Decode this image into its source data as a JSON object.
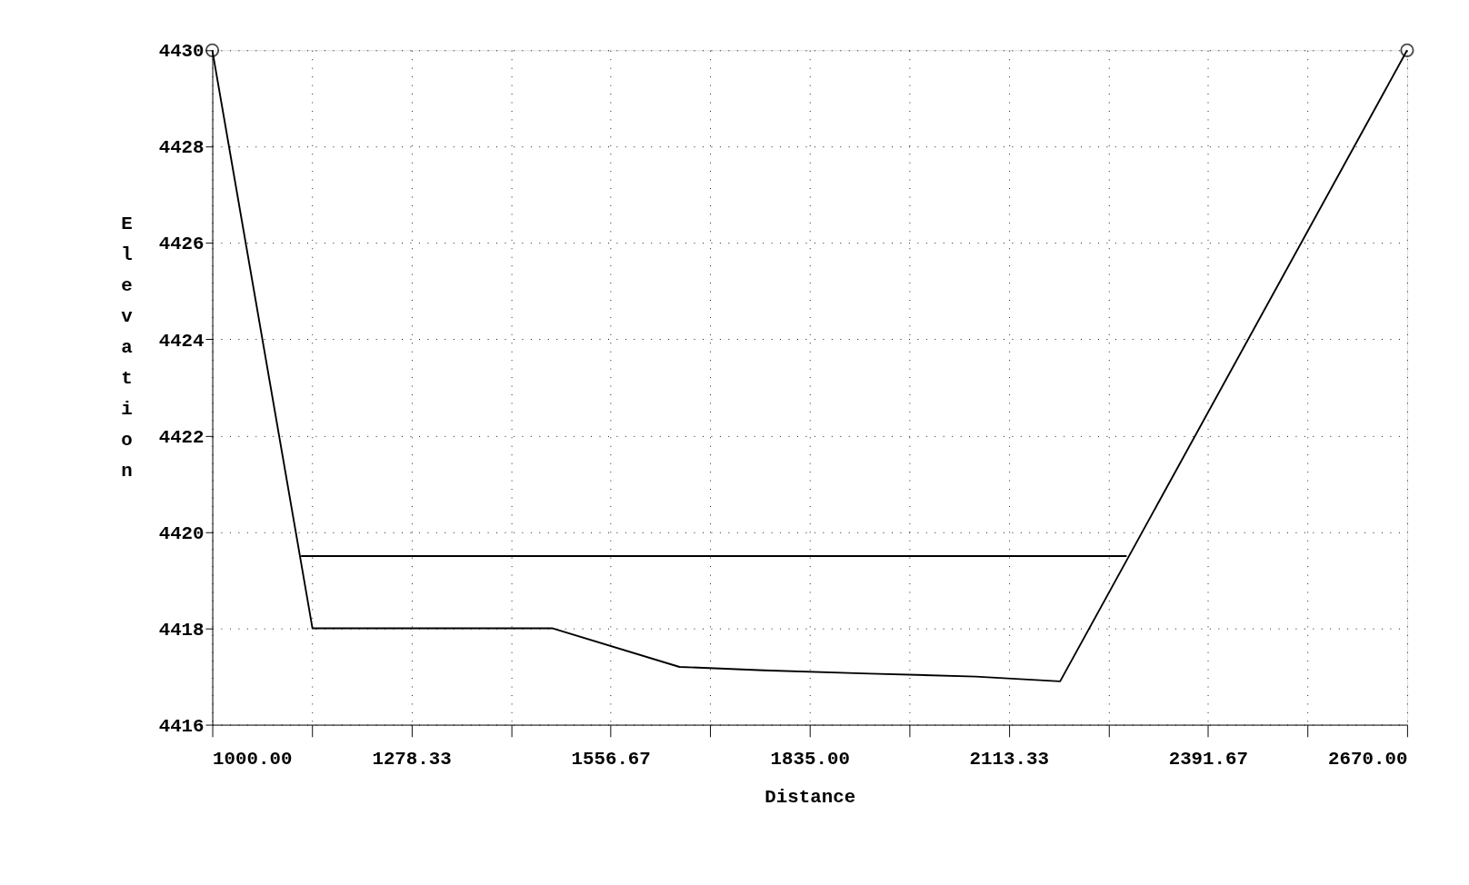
{
  "chart_data": {
    "type": "line",
    "xlabel": "Distance",
    "ylabel": "Elevation",
    "xlim": [
      1000,
      2670
    ],
    "ylim": [
      4416,
      4430
    ],
    "xticks": [
      {
        "value": 1000,
        "label": "1000.00"
      },
      {
        "value": 1139.17,
        "label": null
      },
      {
        "value": 1278.33,
        "label": "1278.33"
      },
      {
        "value": 1417.5,
        "label": null
      },
      {
        "value": 1556.67,
        "label": "1556.67"
      },
      {
        "value": 1695.83,
        "label": null
      },
      {
        "value": 1835,
        "label": "1835.00"
      },
      {
        "value": 1974.17,
        "label": null
      },
      {
        "value": 2113.33,
        "label": "2113.33"
      },
      {
        "value": 2252.5,
        "label": null
      },
      {
        "value": 2391.67,
        "label": "2391.67"
      },
      {
        "value": 2530.83,
        "label": null
      },
      {
        "value": 2670,
        "label": "2670.00"
      }
    ],
    "yticks": [
      4416,
      4418,
      4420,
      4422,
      4424,
      4426,
      4428,
      4430
    ],
    "grid": true,
    "line_style": "solid",
    "marker": "none",
    "series": [
      {
        "color": "#000000",
        "x": [
          1000,
          1140,
          1476,
          1653,
          1771,
          1919,
          2067,
          2185,
          2670
        ],
        "values": [
          4430,
          4418,
          4418,
          4417.2,
          4417.13,
          4417.06,
          4417.0,
          4416.9,
          4430
        ]
      },
      {
        "color": "#000000",
        "x": [
          1124,
          2278
        ],
        "values": [
          4419.5,
          4419.5
        ]
      },
      {
        "type": "scatter",
        "marker": "circle",
        "color": "#000000",
        "x": [
          1000,
          2670
        ],
        "values": [
          4430,
          4430
        ]
      }
    ]
  }
}
